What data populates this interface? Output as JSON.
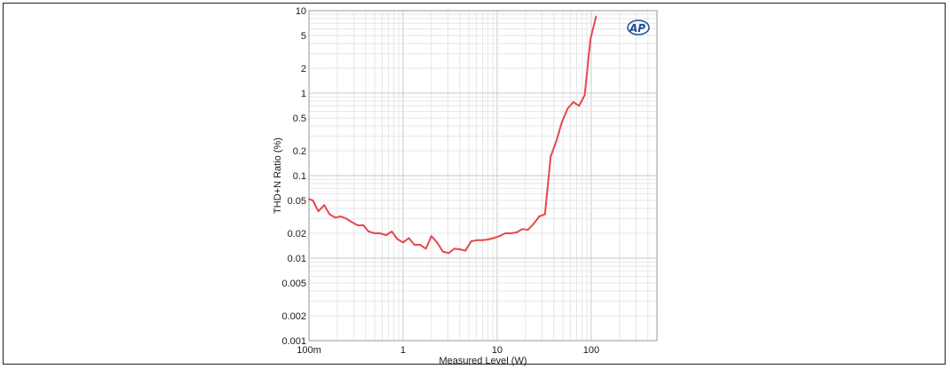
{
  "chart_data": {
    "type": "line",
    "title": "",
    "xlabel": "Measured Level (W)",
    "ylabel": "THD+N Ratio (%)",
    "xscale": "log",
    "yscale": "log",
    "xlim": [
      0.1,
      500
    ],
    "ylim": [
      0.001,
      10
    ],
    "grid": true,
    "x_ticks": [
      {
        "value": 0.1,
        "label": "100m"
      },
      {
        "value": 1,
        "label": "1"
      },
      {
        "value": 10,
        "label": "10"
      },
      {
        "value": 100,
        "label": "100"
      }
    ],
    "y_ticks": [
      {
        "value": 10,
        "label": "10"
      },
      {
        "value": 5,
        "label": "5"
      },
      {
        "value": 2,
        "label": "2"
      },
      {
        "value": 1,
        "label": "1"
      },
      {
        "value": 0.5,
        "label": "0.5"
      },
      {
        "value": 0.2,
        "label": "0.2"
      },
      {
        "value": 0.1,
        "label": "0.1"
      },
      {
        "value": 0.05,
        "label": "0.05"
      },
      {
        "value": 0.02,
        "label": "0.02"
      },
      {
        "value": 0.01,
        "label": "0.01"
      },
      {
        "value": 0.005,
        "label": "0.005"
      },
      {
        "value": 0.002,
        "label": "0.002"
      },
      {
        "value": 0.001,
        "label": "0.001"
      }
    ],
    "series": [
      {
        "color": "#e8474a",
        "points": [
          [
            0.1,
            0.052
          ],
          [
            0.11,
            0.05
          ],
          [
            0.126,
            0.037
          ],
          [
            0.145,
            0.044
          ],
          [
            0.166,
            0.034
          ],
          [
            0.19,
            0.031
          ],
          [
            0.218,
            0.032
          ],
          [
            0.25,
            0.03
          ],
          [
            0.29,
            0.027
          ],
          [
            0.33,
            0.025
          ],
          [
            0.38,
            0.025
          ],
          [
            0.43,
            0.021
          ],
          [
            0.5,
            0.02
          ],
          [
            0.57,
            0.02
          ],
          [
            0.66,
            0.019
          ],
          [
            0.76,
            0.021
          ],
          [
            0.87,
            0.017
          ],
          [
            1.0,
            0.0155
          ],
          [
            1.15,
            0.0175
          ],
          [
            1.32,
            0.0145
          ],
          [
            1.52,
            0.0145
          ],
          [
            1.75,
            0.013
          ],
          [
            2.0,
            0.0185
          ],
          [
            2.3,
            0.0155
          ],
          [
            2.65,
            0.012
          ],
          [
            3.05,
            0.0115
          ],
          [
            3.5,
            0.013
          ],
          [
            4.0,
            0.0128
          ],
          [
            4.6,
            0.0123
          ],
          [
            5.3,
            0.016
          ],
          [
            6.1,
            0.0165
          ],
          [
            7.0,
            0.0165
          ],
          [
            8.0,
            0.0168
          ],
          [
            9.2,
            0.0175
          ],
          [
            10.6,
            0.0185
          ],
          [
            12.2,
            0.02
          ],
          [
            14.0,
            0.02
          ],
          [
            16.1,
            0.0205
          ],
          [
            18.5,
            0.0225
          ],
          [
            21.2,
            0.022
          ],
          [
            24.4,
            0.026
          ],
          [
            28.0,
            0.032
          ],
          [
            32.2,
            0.034
          ],
          [
            37.0,
            0.17
          ],
          [
            42.5,
            0.26
          ],
          [
            48.9,
            0.45
          ],
          [
            56.2,
            0.65
          ],
          [
            64.6,
            0.78
          ],
          [
            74.2,
            0.7
          ],
          [
            85.3,
            0.95
          ],
          [
            98.0,
            4.5
          ],
          [
            112.6,
            8.5
          ]
        ]
      }
    ]
  },
  "logo": {
    "text": "AP"
  }
}
